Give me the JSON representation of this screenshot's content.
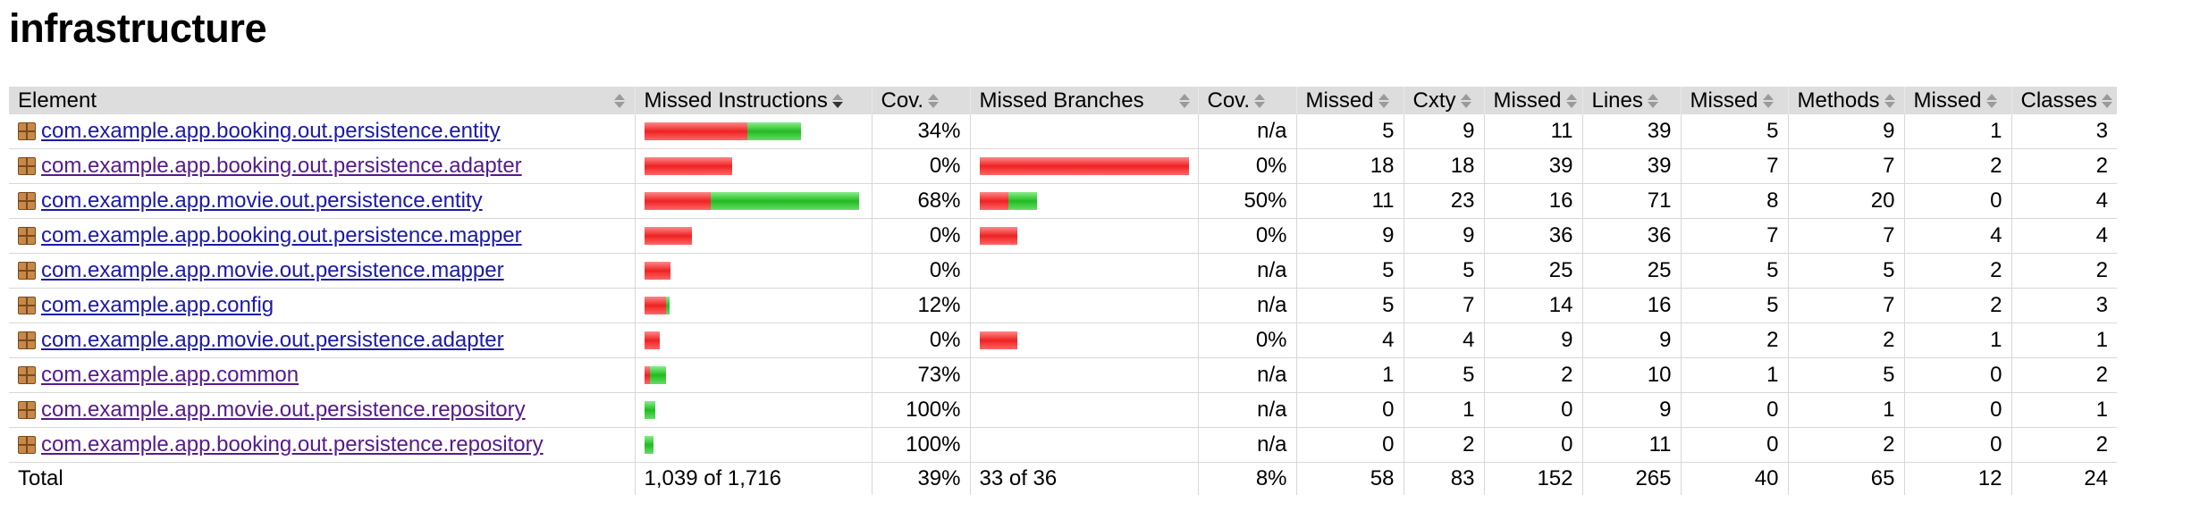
{
  "page": {
    "title": "infrastructure"
  },
  "headers": {
    "element": "Element",
    "missed_instructions": "Missed Instructions",
    "cov1": "Cov.",
    "missed_branches": "Missed Branches",
    "cov2": "Cov.",
    "missed_cxty": "Missed",
    "cxty": "Cxty",
    "missed_lines": "Missed",
    "lines": "Lines",
    "missed_methods": "Missed",
    "methods": "Methods",
    "missed_classes": "Missed",
    "classes": "Classes"
  },
  "colors": {
    "missed": "#ee2222",
    "covered": "#22bb22",
    "header_bg": "#dddddd",
    "link": "#1a1aa6",
    "visited_link": "#551a8b"
  },
  "rows": [
    {
      "name": "com.example.app.booking.out.persistence.entity",
      "visited": false,
      "instr_missed_frac": 0.48,
      "instr_covered_frac": 0.25,
      "instr_cov": "34%",
      "br_missed_frac": 0,
      "br_covered_frac": 0,
      "br_cov": "n/a",
      "mcx": "5",
      "cx": "9",
      "ml": "11",
      "l": "39",
      "mm": "5",
      "m": "9",
      "mc": "1",
      "c": "3"
    },
    {
      "name": "com.example.app.booking.out.persistence.adapter",
      "visited": true,
      "instr_missed_frac": 0.41,
      "instr_covered_frac": 0,
      "instr_cov": "0%",
      "br_missed_frac": 1.0,
      "br_covered_frac": 0,
      "br_cov": "0%",
      "mcx": "18",
      "cx": "18",
      "ml": "39",
      "l": "39",
      "mm": "7",
      "m": "7",
      "mc": "2",
      "c": "2"
    },
    {
      "name": "com.example.app.movie.out.persistence.entity",
      "visited": false,
      "instr_missed_frac": 0.31,
      "instr_covered_frac": 0.69,
      "instr_cov": "68%",
      "br_missed_frac": 0.13,
      "br_covered_frac": 0.13,
      "br_cov": "50%",
      "mcx": "11",
      "cx": "23",
      "ml": "16",
      "l": "71",
      "mm": "8",
      "m": "20",
      "mc": "0",
      "c": "4"
    },
    {
      "name": "com.example.app.booking.out.persistence.mapper",
      "visited": false,
      "instr_missed_frac": 0.22,
      "instr_covered_frac": 0,
      "instr_cov": "0%",
      "br_missed_frac": 0.17,
      "br_covered_frac": 0,
      "br_cov": "0%",
      "mcx": "9",
      "cx": "9",
      "ml": "36",
      "l": "36",
      "mm": "7",
      "m": "7",
      "mc": "4",
      "c": "4"
    },
    {
      "name": "com.example.app.movie.out.persistence.mapper",
      "visited": false,
      "instr_missed_frac": 0.12,
      "instr_covered_frac": 0,
      "instr_cov": "0%",
      "br_missed_frac": 0,
      "br_covered_frac": 0,
      "br_cov": "n/a",
      "mcx": "5",
      "cx": "5",
      "ml": "25",
      "l": "25",
      "mm": "5",
      "m": "5",
      "mc": "2",
      "c": "2"
    },
    {
      "name": "com.example.app.config",
      "visited": false,
      "instr_missed_frac": 0.1,
      "instr_covered_frac": 0.015,
      "instr_cov": "12%",
      "br_missed_frac": 0,
      "br_covered_frac": 0,
      "br_cov": "n/a",
      "mcx": "5",
      "cx": "7",
      "ml": "14",
      "l": "16",
      "mm": "5",
      "m": "7",
      "mc": "2",
      "c": "3"
    },
    {
      "name": "com.example.app.movie.out.persistence.adapter",
      "visited": false,
      "instr_missed_frac": 0.07,
      "instr_covered_frac": 0,
      "instr_cov": "0%",
      "br_missed_frac": 0.17,
      "br_covered_frac": 0,
      "br_cov": "0%",
      "mcx": "4",
      "cx": "4",
      "ml": "9",
      "l": "9",
      "mm": "2",
      "m": "2",
      "mc": "1",
      "c": "1"
    },
    {
      "name": "com.example.app.common",
      "visited": true,
      "instr_missed_frac": 0.027,
      "instr_covered_frac": 0.073,
      "instr_cov": "73%",
      "br_missed_frac": 0,
      "br_covered_frac": 0,
      "br_cov": "n/a",
      "mcx": "1",
      "cx": "5",
      "ml": "2",
      "l": "10",
      "mm": "1",
      "m": "5",
      "mc": "0",
      "c": "2"
    },
    {
      "name": "com.example.app.movie.out.persistence.repository",
      "visited": true,
      "instr_missed_frac": 0,
      "instr_covered_frac": 0.05,
      "instr_cov": "100%",
      "br_missed_frac": 0,
      "br_covered_frac": 0,
      "br_cov": "n/a",
      "mcx": "0",
      "cx": "1",
      "ml": "0",
      "l": "9",
      "mm": "0",
      "m": "1",
      "mc": "0",
      "c": "1"
    },
    {
      "name": "com.example.app.booking.out.persistence.repository",
      "visited": true,
      "instr_missed_frac": 0,
      "instr_covered_frac": 0.04,
      "instr_cov": "100%",
      "br_missed_frac": 0,
      "br_covered_frac": 0,
      "br_cov": "n/a",
      "mcx": "0",
      "cx": "2",
      "ml": "0",
      "l": "11",
      "mm": "0",
      "m": "2",
      "mc": "0",
      "c": "2"
    }
  ],
  "total": {
    "label": "Total",
    "instr": "1,039 of 1,716",
    "instr_cov": "39%",
    "br": "33 of 36",
    "br_cov": "8%",
    "mcx": "58",
    "cx": "83",
    "ml": "152",
    "l": "265",
    "mm": "40",
    "m": "65",
    "mc": "12",
    "c": "24"
  }
}
